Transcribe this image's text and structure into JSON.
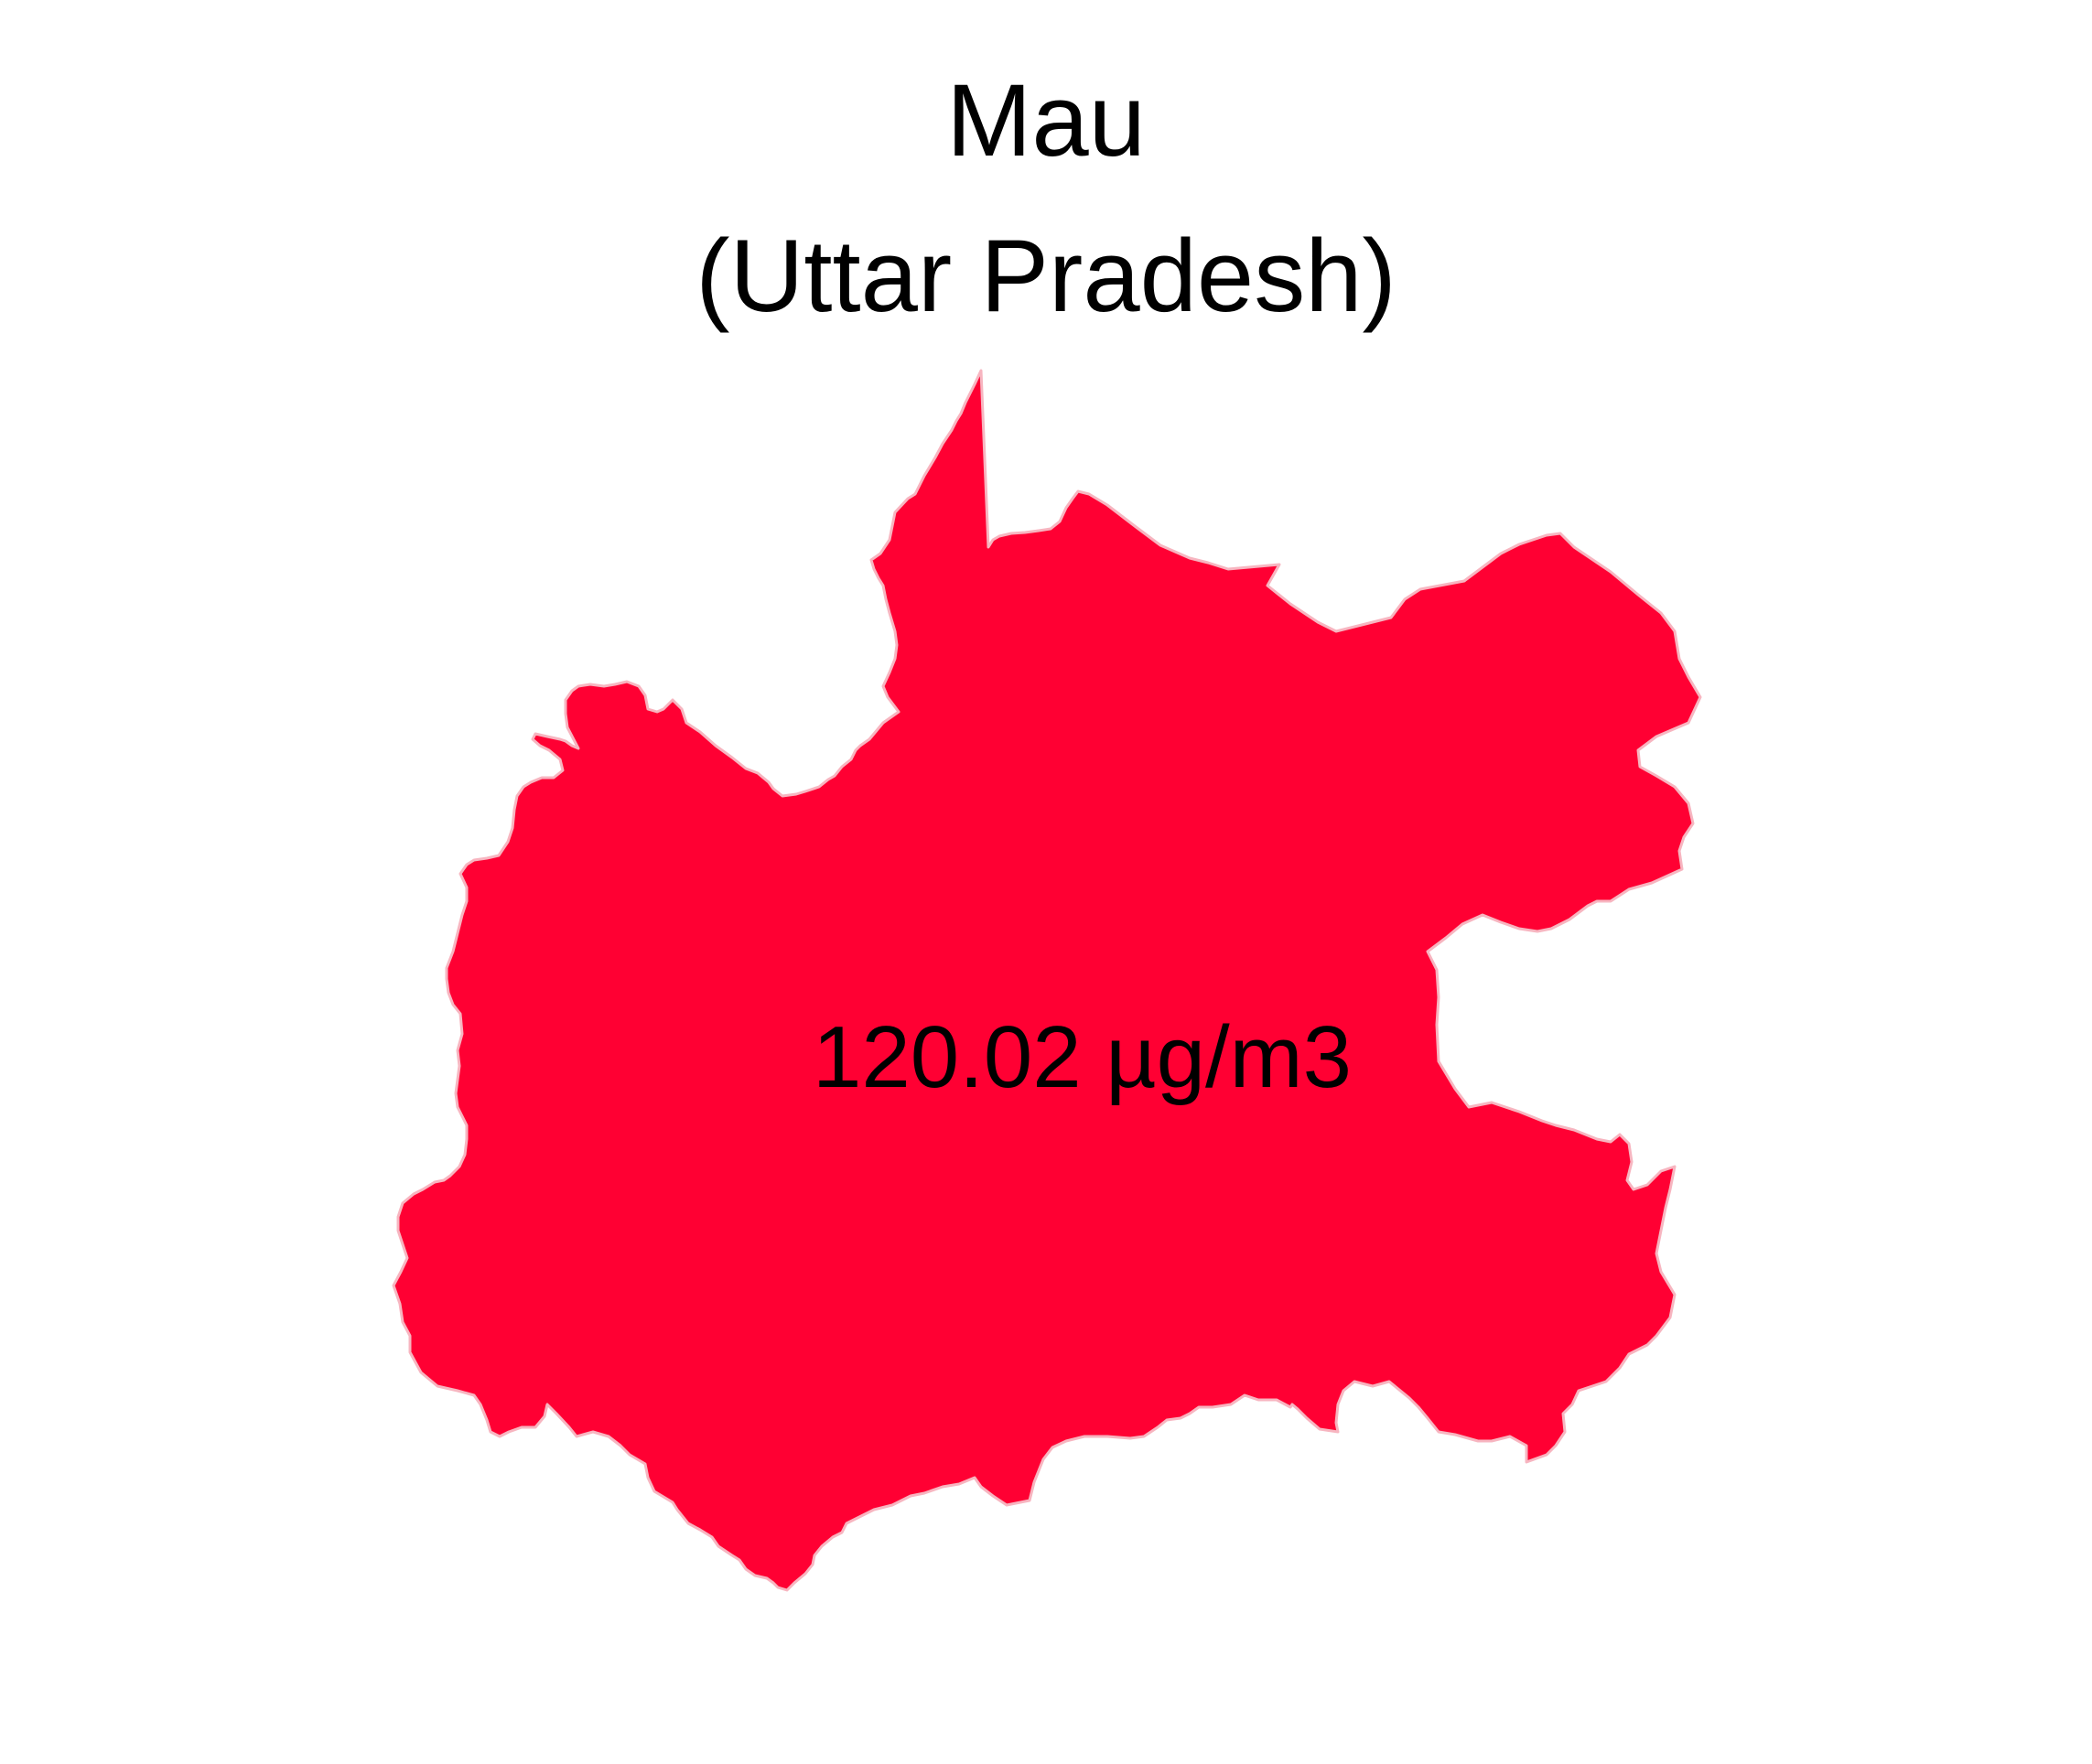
{
  "map": {
    "district": "Mau",
    "state": "(Uttar Pradesh)",
    "value_label": "120.02 µg/m3",
    "fill_color": "#FF0033",
    "outline_color": "#F7B5C0",
    "background_color": "#FFFFFF"
  }
}
